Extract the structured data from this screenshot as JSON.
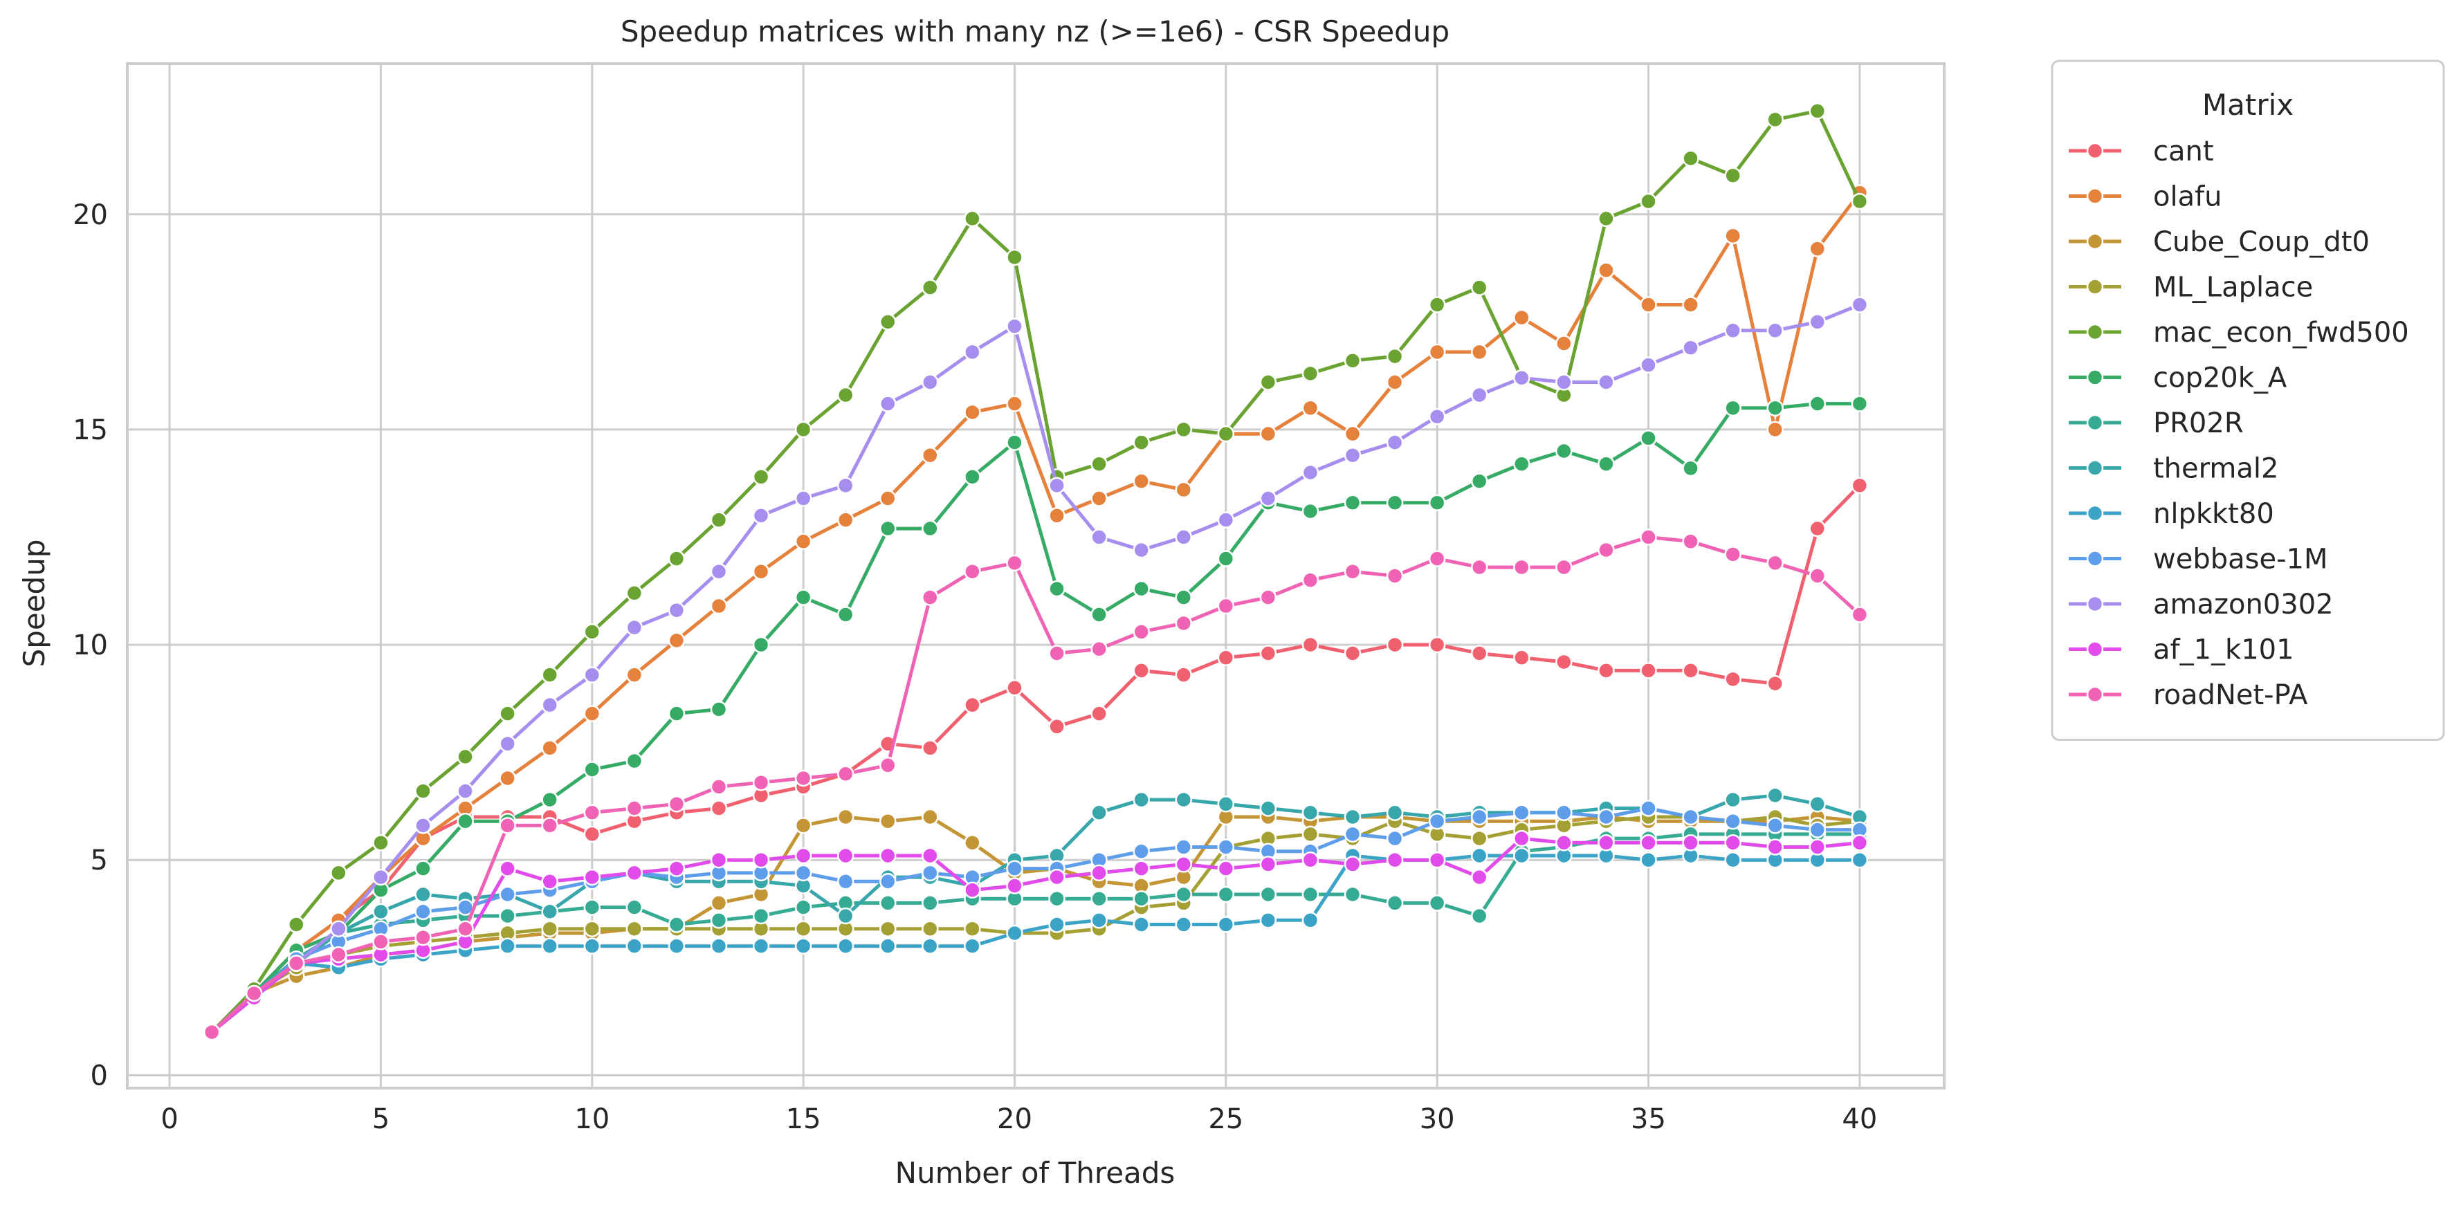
{
  "chart_data": {
    "type": "line",
    "title": "Speedup matrices with many nz (>=1e6) - CSR Speedup",
    "xlabel": "Number of Threads",
    "ylabel": "Speedup",
    "xlim": [
      -1,
      42
    ],
    "ylim": [
      -0.3,
      23.5
    ],
    "xticks": [
      0,
      5,
      10,
      15,
      20,
      25,
      30,
      35,
      40
    ],
    "yticks": [
      0,
      5,
      10,
      15,
      20
    ],
    "grid": true,
    "legend_title": "Matrix",
    "legend_position": "outside-top-right",
    "x": [
      1,
      2,
      3,
      4,
      5,
      6,
      7,
      8,
      9,
      10,
      11,
      12,
      13,
      14,
      15,
      16,
      17,
      18,
      19,
      20,
      21,
      22,
      23,
      24,
      25,
      26,
      27,
      28,
      29,
      30,
      31,
      32,
      33,
      34,
      35,
      36,
      37,
      38,
      39,
      40
    ],
    "series": [
      {
        "name": "cant",
        "color": "#f0606e",
        "values": [
          1.0,
          1.9,
          2.9,
          3.6,
          4.3,
          5.5,
          6.0,
          6.0,
          6.0,
          5.6,
          5.9,
          6.1,
          6.2,
          6.5,
          6.7,
          7.0,
          7.7,
          7.6,
          8.6,
          9.0,
          8.1,
          8.4,
          9.4,
          9.3,
          9.7,
          9.8,
          10.0,
          9.8,
          10.0,
          10.0,
          9.8,
          9.7,
          9.6,
          9.4,
          9.4,
          9.4,
          9.2,
          9.1,
          12.7,
          13.7
        ]
      },
      {
        "name": "olafu",
        "color": "#e5813b",
        "values": [
          1.0,
          1.9,
          2.9,
          3.6,
          4.6,
          5.5,
          6.2,
          6.9,
          7.6,
          8.4,
          9.3,
          10.1,
          10.9,
          11.7,
          12.4,
          12.9,
          13.4,
          14.4,
          15.4,
          15.6,
          13.0,
          13.4,
          13.8,
          13.6,
          14.9,
          14.9,
          15.5,
          14.9,
          16.1,
          16.8,
          16.8,
          17.6,
          17.0,
          18.7,
          17.9,
          17.9,
          19.5,
          15.0,
          19.2,
          20.5
        ]
      },
      {
        "name": "Cube_Coup_dt0",
        "color": "#c39534",
        "values": [
          1.0,
          1.9,
          2.3,
          2.5,
          2.8,
          2.9,
          3.1,
          3.2,
          3.3,
          3.3,
          3.4,
          3.4,
          4.0,
          4.2,
          5.8,
          6.0,
          5.9,
          6.0,
          5.4,
          4.7,
          4.8,
          4.5,
          4.4,
          4.6,
          6.0,
          6.0,
          5.9,
          6.0,
          6.0,
          5.9,
          5.9,
          5.9,
          5.9,
          6.0,
          5.9,
          5.9,
          5.9,
          5.9,
          6.0,
          5.9
        ]
      },
      {
        "name": "ML_Laplace",
        "color": "#a5a034",
        "values": [
          1.0,
          1.9,
          2.5,
          2.8,
          3.0,
          3.1,
          3.2,
          3.3,
          3.4,
          3.4,
          3.4,
          3.4,
          3.4,
          3.4,
          3.4,
          3.4,
          3.4,
          3.4,
          3.4,
          3.3,
          3.3,
          3.4,
          3.9,
          4.0,
          5.3,
          5.5,
          5.6,
          5.5,
          5.9,
          5.6,
          5.5,
          5.7,
          5.8,
          5.9,
          6.0,
          6.0,
          5.9,
          6.0,
          5.8,
          5.9
        ]
      },
      {
        "name": "mac_econ_fwd500",
        "color": "#6ba332",
        "values": [
          1.0,
          2.0,
          3.5,
          4.7,
          5.4,
          6.6,
          7.4,
          8.4,
          9.3,
          10.3,
          11.2,
          12.0,
          12.9,
          13.9,
          15.0,
          15.8,
          17.5,
          18.3,
          19.9,
          19.0,
          13.9,
          14.2,
          14.7,
          15.0,
          14.9,
          16.1,
          16.3,
          16.6,
          16.7,
          17.9,
          18.3,
          16.2,
          15.8,
          19.9,
          20.3,
          21.3,
          20.9,
          22.2,
          22.4,
          20.3
        ]
      },
      {
        "name": "cop20k_A",
        "color": "#35ab66",
        "values": [
          1.0,
          1.9,
          2.9,
          3.3,
          4.3,
          4.8,
          5.9,
          5.9,
          6.4,
          7.1,
          7.3,
          8.4,
          8.5,
          10.0,
          11.1,
          10.7,
          12.7,
          12.7,
          13.9,
          14.7,
          11.3,
          10.7,
          11.3,
          11.1,
          12.0,
          13.3,
          13.1,
          13.3,
          13.3,
          13.3,
          13.8,
          14.2,
          14.5,
          14.2,
          14.8,
          14.1,
          15.5,
          15.5,
          15.6,
          15.6
        ]
      },
      {
        "name": "PR02R",
        "color": "#36ab93",
        "values": [
          1.0,
          1.9,
          2.6,
          3.3,
          3.5,
          3.6,
          3.7,
          3.7,
          3.8,
          3.9,
          3.9,
          3.5,
          3.6,
          3.7,
          3.9,
          4.0,
          4.0,
          4.0,
          4.1,
          4.1,
          4.1,
          4.1,
          4.1,
          4.2,
          4.2,
          4.2,
          4.2,
          4.2,
          4.0,
          4.0,
          3.7,
          5.2,
          5.3,
          5.5,
          5.5,
          5.6,
          5.6,
          5.6,
          5.6,
          5.6
        ]
      },
      {
        "name": "thermal2",
        "color": "#38a7ac",
        "values": [
          1.0,
          1.9,
          2.7,
          3.3,
          3.8,
          4.2,
          4.1,
          4.2,
          3.8,
          4.5,
          4.7,
          4.5,
          4.5,
          4.5,
          4.4,
          3.7,
          4.6,
          4.6,
          4.4,
          5.0,
          5.1,
          6.1,
          6.4,
          6.4,
          6.3,
          6.2,
          6.1,
          6.0,
          6.1,
          6.0,
          6.1,
          6.1,
          6.1,
          6.2,
          6.2,
          6.0,
          6.4,
          6.5,
          6.3,
          6.0
        ]
      },
      {
        "name": "nlpkkt80",
        "color": "#3aa3c6",
        "values": [
          1.0,
          1.8,
          2.6,
          2.5,
          2.7,
          2.8,
          2.9,
          3.0,
          3.0,
          3.0,
          3.0,
          3.0,
          3.0,
          3.0,
          3.0,
          3.0,
          3.0,
          3.0,
          3.0,
          3.3,
          3.5,
          3.6,
          3.5,
          3.5,
          3.5,
          3.6,
          3.6,
          5.1,
          5.0,
          5.0,
          5.1,
          5.1,
          5.1,
          5.1,
          5.0,
          5.1,
          5.0,
          5.0,
          5.0,
          5.0
        ]
      },
      {
        "name": "webbase-1M",
        "color": "#5d9de9",
        "values": [
          1.0,
          1.8,
          2.7,
          3.1,
          3.4,
          3.8,
          3.9,
          4.2,
          4.3,
          4.5,
          4.7,
          4.6,
          4.7,
          4.7,
          4.7,
          4.5,
          4.5,
          4.7,
          4.6,
          4.8,
          4.8,
          5.0,
          5.2,
          5.3,
          5.3,
          5.2,
          5.2,
          5.6,
          5.5,
          5.9,
          6.0,
          6.1,
          6.1,
          6.0,
          6.2,
          6.0,
          5.9,
          5.8,
          5.7,
          5.7
        ]
      },
      {
        "name": "amazon0302",
        "color": "#a68eef",
        "values": [
          1.0,
          1.8,
          2.6,
          3.4,
          4.6,
          5.8,
          6.6,
          7.7,
          8.6,
          9.3,
          10.4,
          10.8,
          11.7,
          13.0,
          13.4,
          13.7,
          15.6,
          16.1,
          16.8,
          17.4,
          13.7,
          12.5,
          12.2,
          12.5,
          12.9,
          13.4,
          14.0,
          14.4,
          14.7,
          15.3,
          15.8,
          16.2,
          16.1,
          16.1,
          16.5,
          16.9,
          17.3,
          17.3,
          17.5,
          17.9
        ]
      },
      {
        "name": "af_1_k101",
        "color": "#e04be9",
        "values": [
          1.0,
          1.8,
          2.6,
          2.7,
          2.8,
          2.9,
          3.1,
          4.8,
          4.5,
          4.6,
          4.7,
          4.8,
          5.0,
          5.0,
          5.1,
          5.1,
          5.1,
          5.1,
          4.3,
          4.4,
          4.6,
          4.7,
          4.8,
          4.9,
          4.8,
          4.9,
          5.0,
          4.9,
          5.0,
          5.0,
          4.6,
          5.5,
          5.4,
          5.4,
          5.4,
          5.4,
          5.4,
          5.3,
          5.3,
          5.4
        ]
      },
      {
        "name": "roadNet-PA",
        "color": "#f062b3",
        "values": [
          1.0,
          1.9,
          2.6,
          2.8,
          3.1,
          3.2,
          3.4,
          5.8,
          5.8,
          6.1,
          6.2,
          6.3,
          6.7,
          6.8,
          6.9,
          7.0,
          7.2,
          11.1,
          11.7,
          11.9,
          9.8,
          9.9,
          10.3,
          10.5,
          10.9,
          11.1,
          11.5,
          11.7,
          11.6,
          12.0,
          11.8,
          11.8,
          11.8,
          12.2,
          12.5,
          12.4,
          12.1,
          11.9,
          11.6,
          10.7
        ]
      }
    ]
  }
}
